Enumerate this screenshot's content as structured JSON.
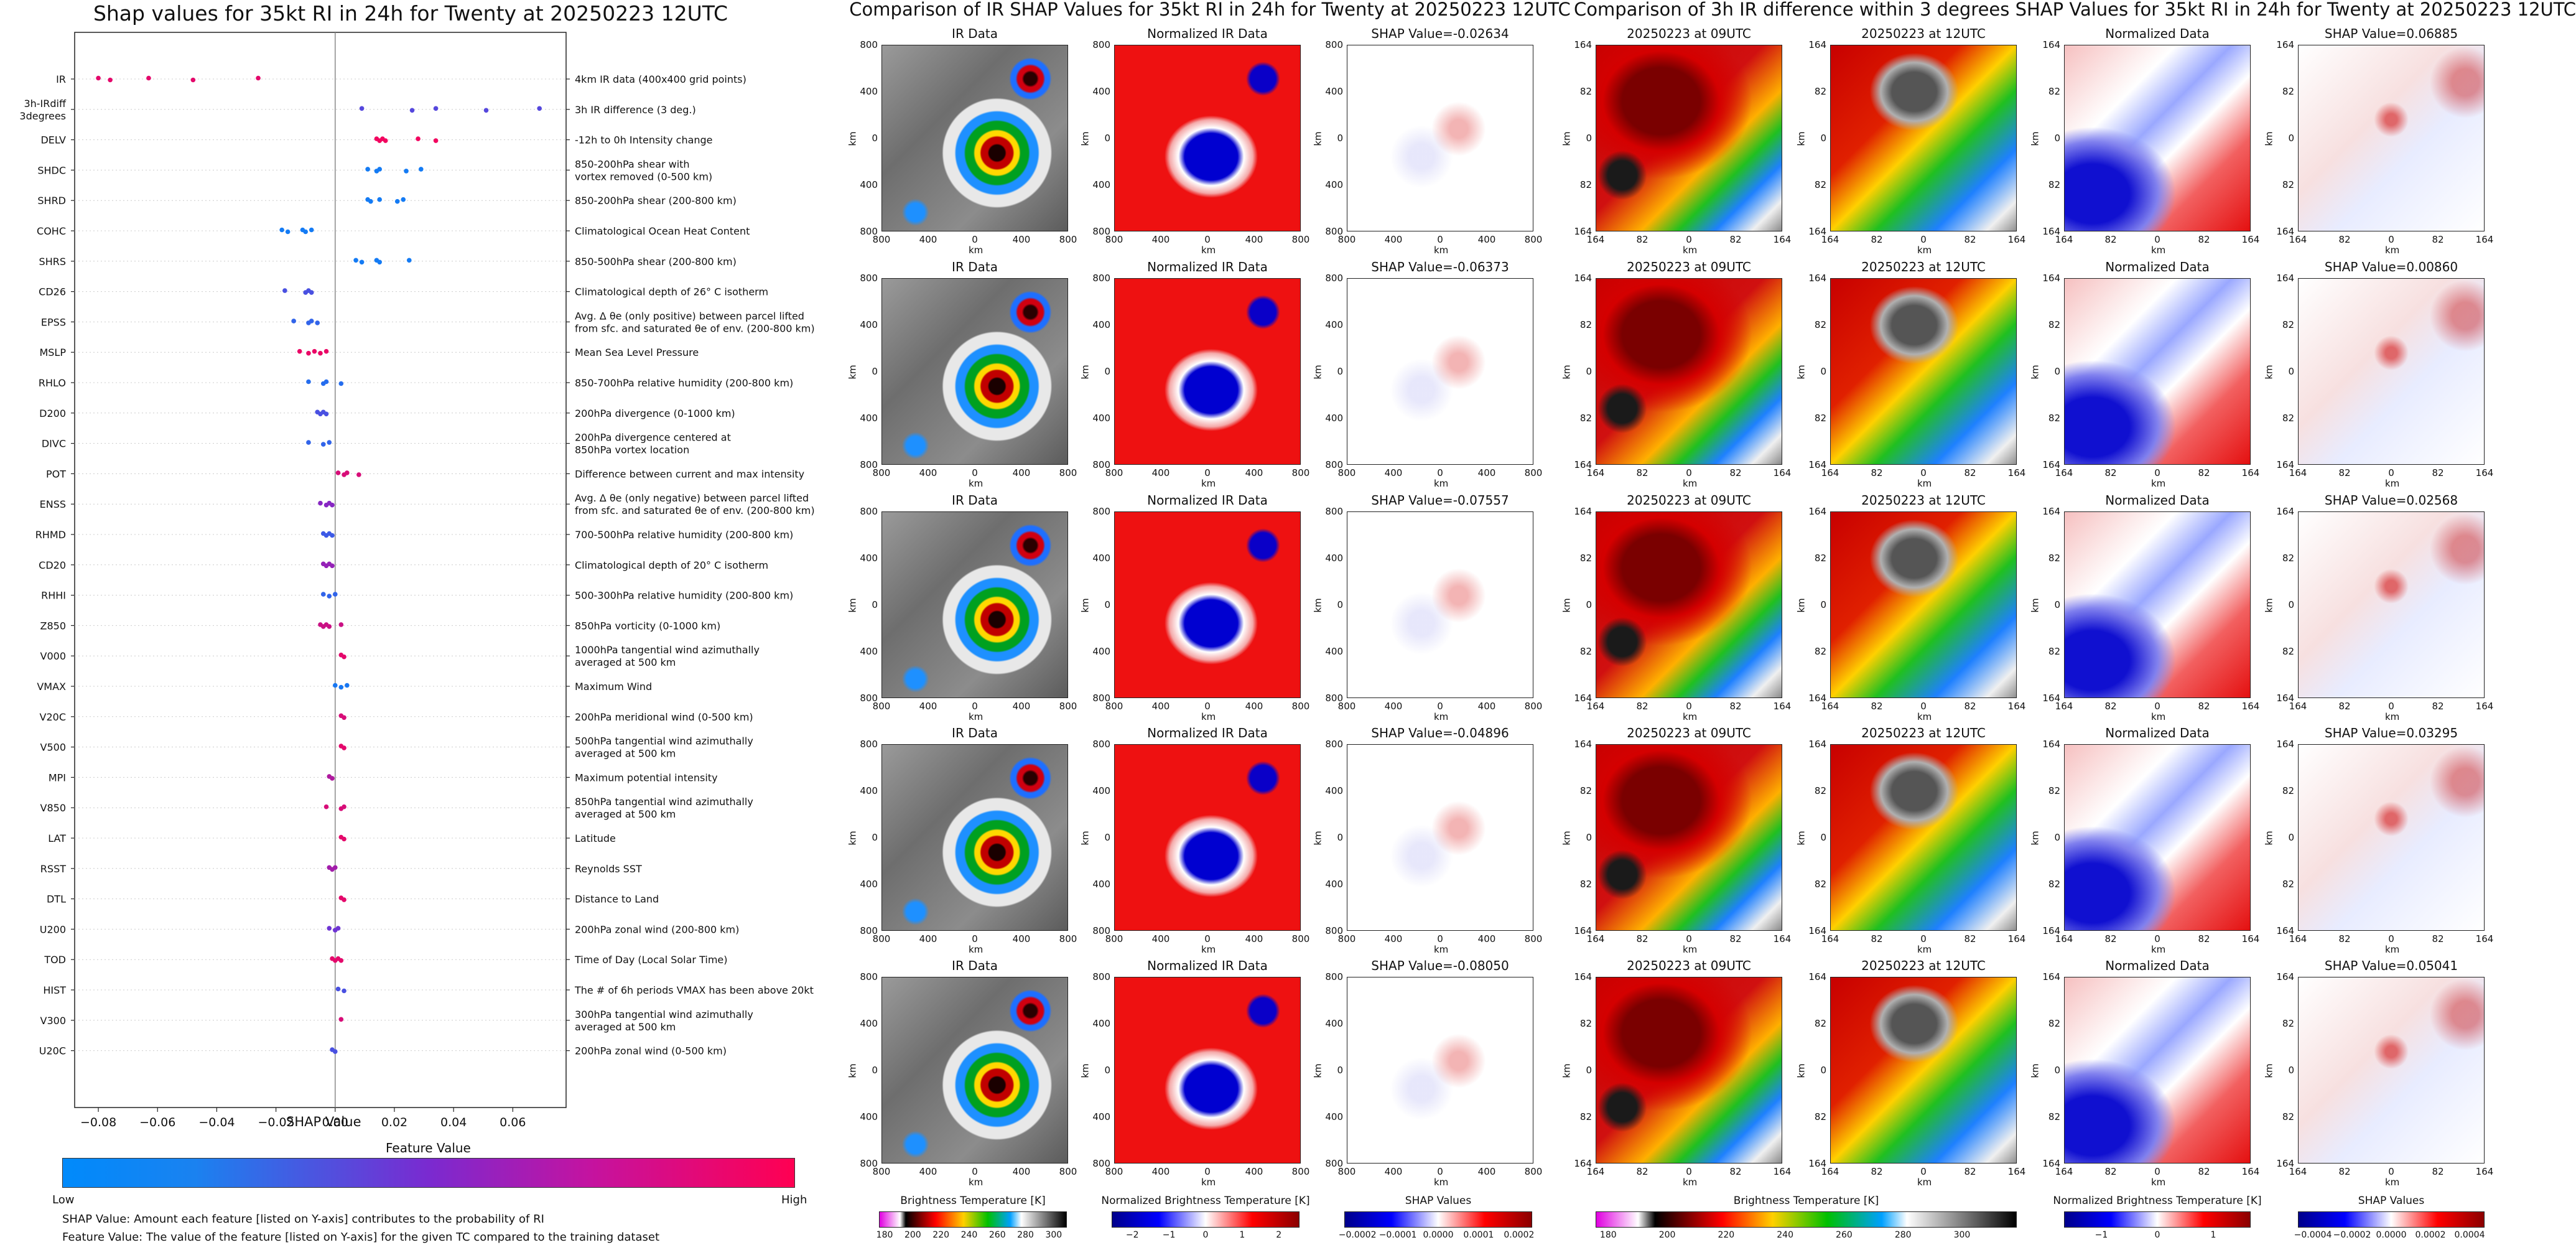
{
  "colors": {
    "feature_low": "#008afb",
    "feature_mid": "#7a2ad0",
    "feature_high": "#ff0052",
    "zero_line": "#888888"
  },
  "left": {
    "title": "Shap values for 35kt RI in 24h for Twenty at 20250223 12UTC",
    "xlabel": "SHAP Value",
    "colorbar_title": "Feature Value",
    "colorbar_low": "Low",
    "colorbar_high": "High",
    "footnote1": "SHAP Value: Amount each feature [listed on Y-axis] contributes to the probability of RI",
    "footnote2": "Feature Value: The value of the feature [listed on Y-axis] for the given TC compared to the training dataset"
  },
  "middle": {
    "title": "Comparison of IR SHAP Values for 35kt RI in 24h for Twenty at 20250223 12UTC",
    "col_titles": [
      "IR Data",
      "Normalized IR Data"
    ],
    "shap_titles": [
      "SHAP Value=-0.02634",
      "SHAP Value=-0.06373",
      "SHAP Value=-0.07557",
      "SHAP Value=-0.04896",
      "SHAP Value=-0.08050"
    ],
    "yticks": [
      "800",
      "400",
      "0",
      "400",
      "800"
    ],
    "xticks": [
      "800",
      "400",
      "0",
      "400",
      "800"
    ],
    "axis_label": "km",
    "colorbars": [
      {
        "label": "Brightness Temperature [K]",
        "ticks": [
          "180",
          "200",
          "220",
          "240",
          "260",
          "280",
          "300"
        ]
      },
      {
        "label": "Normalized Brightness Temperature [K]",
        "ticks": [
          "−2",
          "−1",
          "0",
          "1",
          "2"
        ]
      },
      {
        "label": "SHAP Values",
        "ticks": [
          "−0.0002",
          "−0.0001",
          "0.0000",
          "0.0001",
          "0.0002"
        ]
      }
    ]
  },
  "right": {
    "title": "Comparison of 3h IR difference within 3 degrees SHAP Values for 35kt RI in 24h for Twenty at 20250223 12UTC",
    "col_titles": [
      "20250223 at 09UTC",
      "20250223 at 12UTC",
      "Normalized Data"
    ],
    "shap_titles": [
      "SHAP Value=0.06885",
      "SHAP Value=0.00860",
      "SHAP Value=0.02568",
      "SHAP Value=0.03295",
      "SHAP Value=0.05041"
    ],
    "yticks": [
      "164",
      "82",
      "0",
      "82",
      "164"
    ],
    "xticks": [
      "164",
      "82",
      "0",
      "82",
      "164"
    ],
    "axis_label": "km",
    "colorbars": [
      {
        "label": "Brightness Temperature [K]",
        "ticks": [
          "180",
          "200",
          "220",
          "240",
          "260",
          "280",
          "300"
        ]
      },
      {
        "label": "Normalized Brightness Temperature [K]",
        "ticks": [
          "−1",
          "0",
          "1"
        ]
      },
      {
        "label": "SHAP Values",
        "ticks": [
          "−0.0004",
          "−0.0002",
          "0.0000",
          "0.0002",
          "0.0004"
        ]
      }
    ]
  },
  "chart_data": {
    "type": "scatter",
    "title": "Shap values for 35kt RI in 24h for Twenty at 20250223 12UTC",
    "xlabel": "SHAP Value",
    "ylabel": "",
    "xlim": [
      -0.088,
      0.078
    ],
    "xticks": [
      "−0.08",
      "−0.06",
      "−0.04",
      "−0.02",
      "0.00",
      "0.02",
      "0.04",
      "0.06"
    ],
    "xtick_values": [
      -0.08,
      -0.06,
      -0.04,
      -0.02,
      0.0,
      0.02,
      0.04,
      0.06
    ],
    "grid": false,
    "features": [
      {
        "name": "IR",
        "desc": "4km IR data (400x400 grid points)",
        "values": [
          -0.08,
          -0.076,
          -0.063,
          -0.048,
          -0.026
        ],
        "level": 0.9
      },
      {
        "name": "3h-IRdiff\n3degrees",
        "desc": "3h IR difference (3 deg.)",
        "values": [
          0.009,
          0.026,
          0.034,
          0.051,
          0.069
        ],
        "level": 0.35
      },
      {
        "name": "DELV",
        "desc": "-12h to 0h Intensity change",
        "values": [
          0.014,
          0.015,
          0.016,
          0.017,
          0.028,
          0.034
        ],
        "level": 0.95
      },
      {
        "name": "SHDC",
        "desc": "850-200hPa shear with\nvortex removed (0-500 km)",
        "values": [
          0.011,
          0.014,
          0.015,
          0.024,
          0.029
        ],
        "level": 0.08
      },
      {
        "name": "SHRD",
        "desc": "850-200hPa shear (200-800 km)",
        "values": [
          0.011,
          0.012,
          0.015,
          0.021,
          0.023
        ],
        "level": 0.08
      },
      {
        "name": "COHC",
        "desc": "Climatological Ocean Heat Content",
        "values": [
          -0.018,
          -0.016,
          -0.011,
          -0.01,
          -0.008
        ],
        "level": 0.08
      },
      {
        "name": "SHRS",
        "desc": "850-500hPa shear (200-800 km)",
        "values": [
          0.007,
          0.009,
          0.014,
          0.015,
          0.025
        ],
        "level": 0.08
      },
      {
        "name": "CD26",
        "desc": "Climatological depth of 26° C isotherm",
        "values": [
          -0.017,
          -0.01,
          -0.009,
          -0.008
        ],
        "level": 0.3
      },
      {
        "name": "EPSS",
        "desc": "Avg. Δ θe (only positive) between parcel lifted\nfrom sfc. and saturated θe of env. (200-800 km)",
        "values": [
          -0.014,
          -0.009,
          -0.008,
          -0.006
        ],
        "level": 0.2
      },
      {
        "name": "MSLP",
        "desc": "Mean Sea Level Pressure",
        "values": [
          -0.012,
          -0.009,
          -0.007,
          -0.005,
          -0.003
        ],
        "level": 0.92
      },
      {
        "name": "RHLO",
        "desc": "850-700hPa relative humidity (200-800 km)",
        "values": [
          -0.009,
          -0.004,
          -0.003,
          0.002
        ],
        "level": 0.15
      },
      {
        "name": "D200",
        "desc": "200hPa divergence (0-1000 km)",
        "values": [
          -0.006,
          -0.005,
          -0.004,
          -0.003
        ],
        "level": 0.3
      },
      {
        "name": "DIVC",
        "desc": "200hPa divergence centered at\n850hPa vortex location",
        "values": [
          -0.009,
          -0.004,
          -0.002
        ],
        "level": 0.2
      },
      {
        "name": "POT",
        "desc": "Difference between current and max intensity",
        "values": [
          0.001,
          0.003,
          0.004,
          0.008
        ],
        "level": 0.85
      },
      {
        "name": "ENSS",
        "desc": "Avg. Δ θe (only negative) between parcel lifted\nfrom sfc. and saturated θe of env. (200-800 km)",
        "values": [
          -0.005,
          -0.003,
          -0.002,
          -0.001
        ],
        "level": 0.55
      },
      {
        "name": "RHMD",
        "desc": "700-500hPa relative humidity (200-800 km)",
        "values": [
          -0.004,
          -0.003,
          -0.002,
          -0.001
        ],
        "level": 0.25
      },
      {
        "name": "CD20",
        "desc": "Climatological depth of 20° C isotherm",
        "values": [
          -0.004,
          -0.003,
          -0.002,
          -0.001
        ],
        "level": 0.6
      },
      {
        "name": "RHHI",
        "desc": "500-300hPa relative humidity (200-800 km)",
        "values": [
          -0.004,
          -0.002,
          0.0
        ],
        "level": 0.2
      },
      {
        "name": "Z850",
        "desc": "850hPa vorticity (0-1000 km)",
        "values": [
          -0.005,
          -0.004,
          -0.003,
          -0.002,
          0.002
        ],
        "level": 0.8
      },
      {
        "name": "V000",
        "desc": "1000hPa tangential wind azimuthally\naveraged at 500 km",
        "values": [
          0.002,
          0.003
        ],
        "level": 0.9
      },
      {
        "name": "VMAX",
        "desc": "Maximum Wind",
        "values": [
          0.0,
          0.002,
          0.004
        ],
        "level": 0.1
      },
      {
        "name": "V20C",
        "desc": "200hPa meridional wind (0-500 km)",
        "values": [
          0.002,
          0.003
        ],
        "level": 0.85
      },
      {
        "name": "V500",
        "desc": "500hPa tangential wind azimuthally\naveraged at 500 km",
        "values": [
          0.002,
          0.003
        ],
        "level": 0.9
      },
      {
        "name": "MPI",
        "desc": "Maximum potential intensity",
        "values": [
          -0.002,
          -0.001
        ],
        "level": 0.7
      },
      {
        "name": "V850",
        "desc": "850hPa tangential wind azimuthally\naveraged at 500 km",
        "values": [
          -0.003,
          0.002,
          0.003
        ],
        "level": 0.85
      },
      {
        "name": "LAT",
        "desc": "Latitude",
        "values": [
          0.002,
          0.003
        ],
        "level": 0.9
      },
      {
        "name": "RSST",
        "desc": "Reynolds SST",
        "values": [
          -0.002,
          -0.001,
          0.0
        ],
        "level": 0.65
      },
      {
        "name": "DTL",
        "desc": "Distance to Land",
        "values": [
          0.002,
          0.003
        ],
        "level": 0.9
      },
      {
        "name": "U200",
        "desc": "200hPa zonal wind (200-800 km)",
        "values": [
          -0.002,
          0.0,
          0.001
        ],
        "level": 0.45
      },
      {
        "name": "TOD",
        "desc": "Time of Day (Local Solar Time)",
        "values": [
          -0.001,
          0.0,
          0.001,
          0.002
        ],
        "level": 0.9
      },
      {
        "name": "HIST",
        "desc": "The # of 6h periods VMAX has been above 20kt",
        "values": [
          0.001,
          0.003
        ],
        "level": 0.3
      },
      {
        "name": "V300",
        "desc": "300hPa tangential wind azimuthally\naveraged at 500 km",
        "values": [
          0.002
        ],
        "level": 0.85
      },
      {
        "name": "U20C",
        "desc": "200hPa zonal wind (0-500 km)",
        "values": [
          -0.001,
          0.0
        ],
        "level": 0.3
      }
    ]
  }
}
